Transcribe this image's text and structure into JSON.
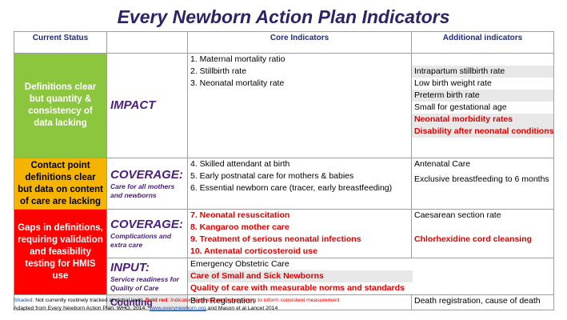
{
  "title": "Every Newborn Action Plan Indicators",
  "headers": {
    "status": "Current Status",
    "core": "Core Indicators",
    "additional": "Additional indicators"
  },
  "rows": {
    "impact": {
      "status": "Definitions clear but quantity & consistency of data lacking",
      "category": "IMPACT",
      "core": [
        "1. Maternal mortality ratio",
        "2. Stillbirth rate",
        "3. Neonatal mortality rate"
      ],
      "additional": [
        "Intrapartum stillbirth rate",
        "Low birth weight rate",
        "Preterm birth rate",
        "Small for gestational age",
        "Neonatal morbidity rates",
        "Disability after neonatal conditions"
      ]
    },
    "coverage1": {
      "status": "Contact point definitions clear but data on content of care are lacking",
      "category": "COVERAGE:",
      "category_sub": "Care for all mothers and newborns",
      "core": [
        "4. Skilled attendant at birth",
        "5. Early postnatal care for mothers & babies",
        "6. Essential newborn care (tracer, early breastfeeding)"
      ],
      "additional": [
        "Antenatal Care",
        "Exclusive breastfeeding  to 6 months"
      ]
    },
    "coverage2": {
      "status": "Gaps in definitions, requiring validation and feasibility testing for HMIS use",
      "category": "COVERAGE:",
      "category_sub": "Complications and extra care",
      "core": [
        "7.    Neonatal resuscitation",
        "8.    Kangaroo mother care",
        "9.    Treatment of serious neonatal infections",
        "10.   Antenatal corticosteroid use"
      ],
      "additional": [
        "Caesarean section rate",
        "Chlorhexidine cord cleansing"
      ]
    },
    "input": {
      "category": "INPUT:",
      "category_sub": "Service readiness for Quality of Care",
      "core": [
        "Emergency Obstetric Care",
        "Care of Small and Sick Newborns",
        "Quality of care with measurable norms and standards"
      ]
    },
    "counting": {
      "category": "Counting",
      "core": [
        "Birth Registration"
      ],
      "additional": [
        "Death registration, cause of death"
      ]
    }
  },
  "footnote": {
    "shaded_label": "Shaded",
    "shaded_text": ": Not currently routinely tracked at global level",
    "bold_red_label": "Bold red",
    "bold_red_text": ": Indicator requiring additional testing to inform consistent measurement",
    "source_prefix": "Adapted from Every Newborn Action Plan. WHO, 2014.",
    "source_link": "www.everynewborn.org",
    "source_suffix": " and Mason et al Lancet 2014"
  },
  "colors": {
    "green": "#8cc63e",
    "yellow": "#f4b400",
    "red": "#ff0000",
    "title": "#2e2366",
    "purple": "#4b1d7d",
    "bold_red": "#e00000",
    "shade": "#e8e8e8"
  }
}
